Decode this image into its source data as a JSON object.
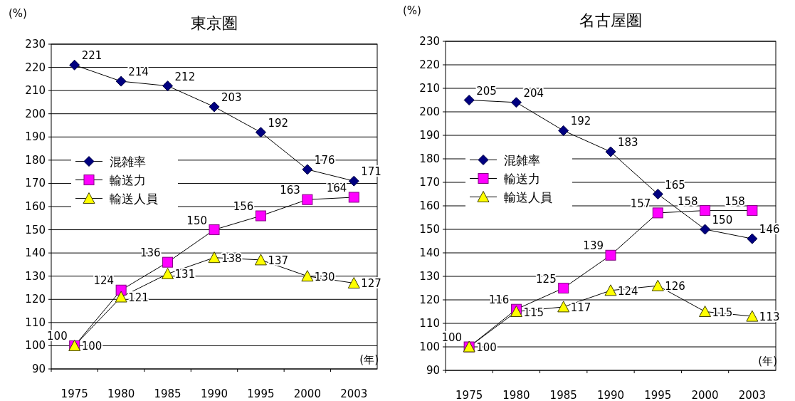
{
  "chart_data": [
    {
      "type": "line",
      "title": "東京圏",
      "ylabel": "(%)",
      "xlabel": "(年)",
      "categories": [
        "1975",
        "1980",
        "1985",
        "1990",
        "1995",
        "2000",
        "2003"
      ],
      "ylim": [
        90,
        230
      ],
      "yticks": [
        90,
        100,
        110,
        120,
        130,
        140,
        150,
        160,
        170,
        180,
        190,
        200,
        210,
        220,
        230
      ],
      "grid": "y",
      "legend": "left",
      "data_labels": true,
      "series": [
        {
          "name": "混雑率",
          "color": "#000080",
          "marker": "diamond",
          "values": [
            221,
            214,
            212,
            203,
            192,
            176,
            171
          ]
        },
        {
          "name": "輸送力",
          "color": "#ff00ff",
          "marker": "square",
          "values": [
            100,
            124,
            136,
            150,
            156,
            163,
            164
          ]
        },
        {
          "name": "輸送人員",
          "color": "#ffff00",
          "marker": "triangle",
          "values": [
            100,
            121,
            131,
            138,
            137,
            130,
            127
          ]
        }
      ]
    },
    {
      "type": "line",
      "title": "名古屋圏",
      "ylabel": "(%)",
      "xlabel": "(年)",
      "categories": [
        "1975",
        "1980",
        "1985",
        "1990",
        "1995",
        "2000",
        "2003"
      ],
      "ylim": [
        90,
        230
      ],
      "yticks": [
        90,
        100,
        110,
        120,
        130,
        140,
        150,
        160,
        170,
        180,
        190,
        200,
        210,
        220,
        230
      ],
      "grid": "y",
      "legend": "left",
      "data_labels": true,
      "series": [
        {
          "name": "混雑率",
          "color": "#000080",
          "marker": "diamond",
          "values": [
            205,
            204,
            192,
            183,
            165,
            150,
            146
          ]
        },
        {
          "name": "輸送力",
          "color": "#ff00ff",
          "marker": "square",
          "values": [
            100,
            116,
            125,
            139,
            157,
            158,
            158
          ]
        },
        {
          "name": "輸送人員",
          "color": "#ffff00",
          "marker": "triangle",
          "values": [
            100,
            115,
            117,
            124,
            126,
            115,
            113
          ]
        }
      ]
    }
  ]
}
